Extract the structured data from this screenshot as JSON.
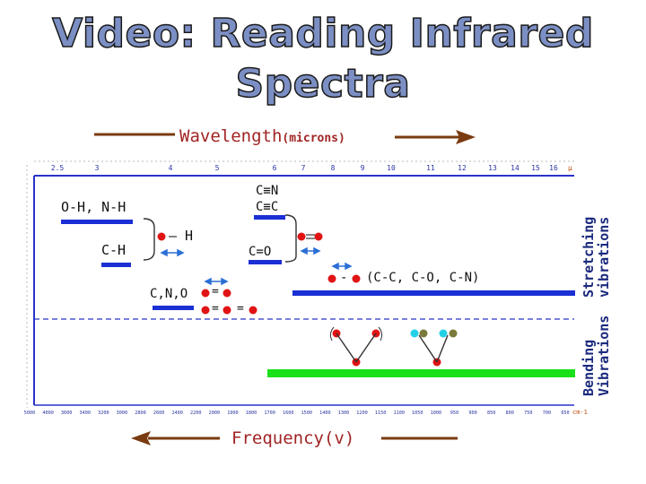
{
  "title": {
    "line1": "Video: Reading Infrared",
    "line2": "Spectra"
  },
  "wavelength": {
    "word": "Wavelength",
    "unit": "(microns)"
  },
  "frequency": {
    "word": "Frequency",
    "unit": "(v)",
    "unit_label": "cm-1"
  },
  "wavelength_ticks": [
    "2.5",
    "3",
    "4",
    "5",
    "6",
    "7",
    "8",
    "9",
    "10",
    "11",
    "12",
    "13",
    "14",
    "15",
    "16"
  ],
  "wavelength_mu": "μ",
  "frequency_ticks": [
    "5000",
    "4000",
    "3600",
    "3400",
    "3200",
    "3000",
    "2800",
    "2600",
    "2400",
    "2200",
    "2000",
    "1900",
    "1800",
    "1700",
    "1600",
    "1500",
    "1400",
    "1300",
    "1200",
    "1150",
    "1100",
    "1050",
    "1000",
    "950",
    "900",
    "850",
    "800",
    "750",
    "700",
    "650"
  ],
  "labels": {
    "oh_nh": "O-H, N-H",
    "ch": "C-H",
    "cn_cc_triple_1": "C≡N",
    "cn_cc_triple_2": "C≡C",
    "co_double": "C=O",
    "cno": "C,N,O",
    "dash_h": "– H",
    "single_bond_groups": "(C-C, C-O, C-N)",
    "single_dash": "-",
    "eq1": "=",
    "eq2": "=",
    "eq3": "="
  },
  "side": {
    "stretching_1": "Stretching",
    "stretching_2": "vibrations",
    "bending_1": "Bending",
    "bending_2": "Vibrations"
  },
  "colors": {
    "band_blue": "#1a2fd4",
    "band_green": "#19e019",
    "atom_red": "#e01414",
    "arrow_brown": "#7a3b10",
    "arrow_blue": "#2b6fd6",
    "title_fill": "#7c8fc4"
  }
}
